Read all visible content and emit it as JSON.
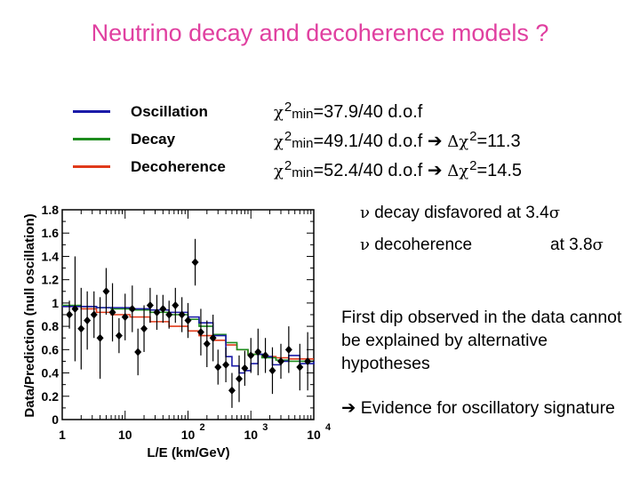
{
  "title": "Neutrino decay and decoherence models ?",
  "legend": [
    {
      "label": "Oscillation",
      "color": "#1a1aa8"
    },
    {
      "label": "Decay",
      "color": "#1e8c1e"
    },
    {
      "label": "Decoherence",
      "color": "#e03a1a"
    }
  ],
  "chi2": [
    {
      "chi": "χ",
      "sup": "2",
      "sub": "min",
      "text": "=37.9/40 d.o.f",
      "arrow": "",
      "delta": "",
      "dsup": "",
      "dval": ""
    },
    {
      "chi": "χ",
      "sup": "2",
      "sub": "min",
      "text": "=49.1/40 d.o.f ",
      "arrow": "➔",
      "delta": "Δχ",
      "dsup": "2",
      "dval": "=11.3"
    },
    {
      "chi": "χ",
      "sup": "2",
      "sub": "min",
      "text": "=52.4/40 d.o.f ",
      "arrow": "➔",
      "delta": "Δχ",
      "dsup": "2",
      "dval": "=14.5"
    }
  ],
  "stats": [
    {
      "nu": "ν",
      "label": " decay disfavored at 3.4",
      "sigma": "σ"
    },
    {
      "nu": "ν",
      "label": " decoherence",
      "level": "at 3.8",
      "sigma": "σ"
    }
  ],
  "note1": "First dip observed in the data cannot be explained by alternative hypotheses",
  "note2_arrow": "➔",
  "note2": " Evidence for oscillatory signature",
  "chart_data": {
    "type": "line",
    "xlabel": "L/E (km/GeV)",
    "ylabel": "Data/Prediction (null oscillation)",
    "xscale": "log",
    "xlim": [
      1,
      10000
    ],
    "ylim": [
      0,
      1.8
    ],
    "x_ticks": [
      {
        "v": 1,
        "label": "1",
        "sup": ""
      },
      {
        "v": 10,
        "label": "10",
        "sup": ""
      },
      {
        "v": 100,
        "label": "10",
        "sup": "2"
      },
      {
        "v": 1000,
        "label": "10",
        "sup": "3"
      },
      {
        "v": 10000,
        "label": "10",
        "sup": "4"
      }
    ],
    "y_ticks": [
      {
        "v": 0,
        "label": "0"
      },
      {
        "v": 0.2,
        "label": "0.2"
      },
      {
        "v": 0.4,
        "label": "0.4"
      },
      {
        "v": 0.6,
        "label": "0.6"
      },
      {
        "v": 0.8,
        "label": "0.8"
      },
      {
        "v": 1.0,
        "label": "1"
      },
      {
        "v": 1.2,
        "label": "1.2"
      },
      {
        "v": 1.4,
        "label": "1.4"
      },
      {
        "v": 1.6,
        "label": "1.6"
      },
      {
        "v": 1.8,
        "label": "1.8"
      }
    ],
    "series": [
      {
        "color": "#e03a1a",
        "x": [
          1,
          2,
          3.5,
          6,
          12,
          25,
          50,
          100,
          150,
          250,
          400,
          600,
          900,
          1500,
          2500,
          4000,
          6000,
          10000
        ],
        "y": [
          0.97,
          0.95,
          0.92,
          0.9,
          0.88,
          0.84,
          0.8,
          0.76,
          0.72,
          0.68,
          0.64,
          0.6,
          0.56,
          0.54,
          0.53,
          0.52,
          0.52,
          0.52
        ]
      },
      {
        "color": "#1e8c1e",
        "x": [
          1,
          2,
          3.5,
          6,
          12,
          25,
          50,
          100,
          150,
          250,
          400,
          600,
          900,
          1500,
          2500,
          4000,
          6000,
          10000
        ],
        "y": [
          0.98,
          0.97,
          0.96,
          0.95,
          0.94,
          0.92,
          0.9,
          0.86,
          0.8,
          0.73,
          0.66,
          0.6,
          0.56,
          0.53,
          0.51,
          0.5,
          0.5,
          0.5
        ]
      },
      {
        "color": "#1a1aa8",
        "x": [
          1,
          2,
          3.5,
          6,
          12,
          25,
          50,
          100,
          150,
          250,
          400,
          500,
          650,
          800,
          1000,
          1300,
          1700,
          2200,
          3000,
          4000,
          6000,
          10000
        ],
        "y": [
          0.97,
          0.97,
          0.96,
          0.96,
          0.95,
          0.94,
          0.92,
          0.88,
          0.83,
          0.72,
          0.54,
          0.46,
          0.4,
          0.42,
          0.48,
          0.56,
          0.54,
          0.47,
          0.5,
          0.55,
          0.48,
          0.5
        ]
      }
    ],
    "points": [
      {
        "x": 1.3,
        "y": 0.9,
        "e": 0.12
      },
      {
        "x": 1.6,
        "y": 0.95,
        "e": 0.45
      },
      {
        "x": 2.0,
        "y": 0.78,
        "e": 0.35
      },
      {
        "x": 2.5,
        "y": 0.85,
        "e": 0.25
      },
      {
        "x": 3.2,
        "y": 0.9,
        "e": 0.2
      },
      {
        "x": 4.0,
        "y": 0.7,
        "e": 0.35
      },
      {
        "x": 5.0,
        "y": 1.1,
        "e": 0.2
      },
      {
        "x": 6.3,
        "y": 0.92,
        "e": 0.25
      },
      {
        "x": 8.0,
        "y": 0.72,
        "e": 0.15
      },
      {
        "x": 10,
        "y": 0.88,
        "e": 0.2
      },
      {
        "x": 13,
        "y": 0.95,
        "e": 0.2
      },
      {
        "x": 16,
        "y": 0.58,
        "e": 0.2
      },
      {
        "x": 20,
        "y": 0.78,
        "e": 0.2
      },
      {
        "x": 25,
        "y": 0.98,
        "e": 0.15
      },
      {
        "x": 32,
        "y": 0.92,
        "e": 0.15
      },
      {
        "x": 40,
        "y": 0.95,
        "e": 0.12
      },
      {
        "x": 50,
        "y": 0.9,
        "e": 0.12
      },
      {
        "x": 63,
        "y": 0.98,
        "e": 0.15
      },
      {
        "x": 80,
        "y": 0.9,
        "e": 0.15
      },
      {
        "x": 100,
        "y": 0.85,
        "e": 0.15
      },
      {
        "x": 130,
        "y": 1.35,
        "e": 0.2
      },
      {
        "x": 160,
        "y": 0.75,
        "e": 0.2
      },
      {
        "x": 200,
        "y": 0.65,
        "e": 0.2
      },
      {
        "x": 250,
        "y": 0.7,
        "e": 0.2
      },
      {
        "x": 300,
        "y": 0.45,
        "e": 0.15
      },
      {
        "x": 400,
        "y": 0.47,
        "e": 0.15
      },
      {
        "x": 500,
        "y": 0.25,
        "e": 0.15
      },
      {
        "x": 650,
        "y": 0.35,
        "e": 0.2
      },
      {
        "x": 800,
        "y": 0.44,
        "e": 0.15
      },
      {
        "x": 1000,
        "y": 0.55,
        "e": 0.15
      },
      {
        "x": 1300,
        "y": 0.58,
        "e": 0.2
      },
      {
        "x": 1700,
        "y": 0.55,
        "e": 0.15
      },
      {
        "x": 2200,
        "y": 0.42,
        "e": 0.2
      },
      {
        "x": 3000,
        "y": 0.5,
        "e": 0.15
      },
      {
        "x": 4000,
        "y": 0.6,
        "e": 0.2
      },
      {
        "x": 6000,
        "y": 0.45,
        "e": 0.2
      },
      {
        "x": 8000,
        "y": 0.5,
        "e": 0.25
      }
    ]
  }
}
